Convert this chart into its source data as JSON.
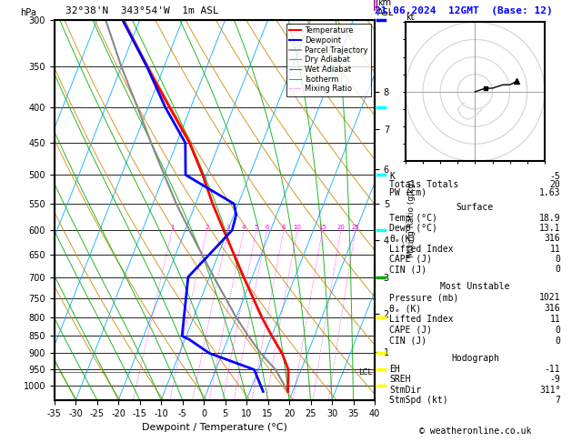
{
  "title_left": "32°38'N  343°54'W  1m ASL",
  "title_top_right": "21.06.2024  12GMT  (Base: 12)",
  "xlabel": "Dewpoint / Temperature (°C)",
  "ylabel_left": "hPa",
  "x_min": -35,
  "x_max": 40,
  "pressure_ticks": [
    300,
    350,
    400,
    450,
    500,
    550,
    600,
    650,
    700,
    750,
    800,
    850,
    900,
    950,
    1000
  ],
  "pmin": 300,
  "pmax": 1050,
  "temp_profile_p": [
    1021,
    950,
    900,
    850,
    800,
    700,
    600,
    550,
    500,
    450,
    400,
    350,
    300
  ],
  "temp_profile_t": [
    18.9,
    17.0,
    14.0,
    10.0,
    6.0,
    -2.0,
    -11.0,
    -16.0,
    -21.0,
    -27.0,
    -35.0,
    -44.0,
    -54.0
  ],
  "dewp_profile_p": [
    1021,
    950,
    900,
    860,
    850,
    700,
    600,
    570,
    550,
    500,
    450,
    400,
    350,
    300
  ],
  "dewp_profile_t": [
    13.1,
    9.0,
    -3.0,
    -9.0,
    -11.0,
    -15.0,
    -9.0,
    -9.5,
    -11.0,
    -25.0,
    -28.0,
    -36.0,
    -44.0,
    -54.0
  ],
  "parcel_profile_p": [
    1021,
    950,
    900,
    850,
    800,
    700,
    600,
    550,
    500,
    450,
    400,
    350,
    300
  ],
  "parcel_profile_t": [
    18.9,
    14.0,
    9.0,
    4.5,
    0.0,
    -9.0,
    -19.0,
    -24.5,
    -30.0,
    -36.0,
    -42.5,
    -50.0,
    -58.0
  ],
  "temp_color": "#ff0000",
  "dewp_color": "#0000ff",
  "parcel_color": "#888888",
  "dry_adiabat_color": "#cc8800",
  "wet_adiabat_color": "#00aa00",
  "isotherm_color": "#00aaff",
  "mixing_ratio_color": "#ff00ff",
  "km_ticks": [
    1,
    2,
    3,
    4,
    5,
    6,
    7,
    8
  ],
  "km_pressures": [
    895,
    790,
    700,
    620,
    550,
    490,
    430,
    380
  ],
  "mixing_ratio_lines": [
    1,
    2,
    3,
    4,
    5,
    6,
    8,
    10,
    15,
    20,
    25
  ],
  "lcl_p": 958,
  "skew_factor": 35,
  "stats_K": -5,
  "stats_TT": 20,
  "stats_PW": 1.63,
  "surf_temp": 18.9,
  "surf_dewp": 13.1,
  "surf_thetae": 316,
  "surf_li": 11,
  "surf_cape": 0,
  "surf_cin": 0,
  "mu_pres": 1021,
  "mu_thetae": 316,
  "mu_li": 11,
  "mu_cape": 0,
  "mu_cin": 0,
  "hodo_EH": -11,
  "hodo_SREH": -9,
  "hodo_StmDir": 311,
  "hodo_StmSpd": 7,
  "copyright": "© weatheronline.co.uk",
  "wind_marker_pressures": [
    300,
    400,
    500,
    600,
    700,
    800,
    900,
    950,
    1000
  ],
  "wind_colors_right": [
    "#0000ff",
    "#00ffff",
    "#00ffff",
    "#00ffff",
    "#00aa00",
    "#ffff00",
    "#ffff00",
    "#ffff00",
    "#ffff00"
  ]
}
